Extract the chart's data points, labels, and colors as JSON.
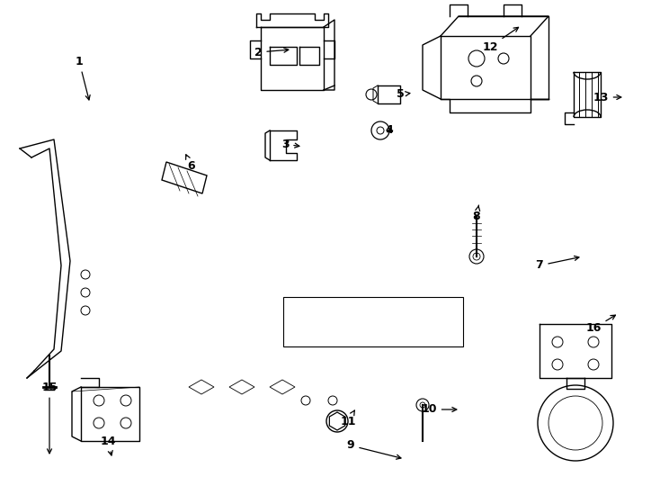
{
  "background_color": "#ffffff",
  "line_color": "#000000",
  "label_color": "#000000",
  "figsize": [
    7.34,
    5.4
  ],
  "dpi": 100
}
